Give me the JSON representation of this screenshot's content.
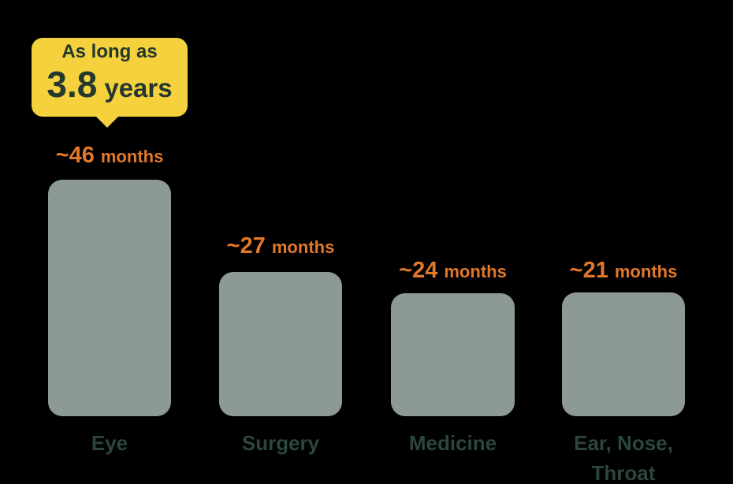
{
  "canvas": {
    "background_color": "#000000"
  },
  "callout": {
    "line1": "As long as",
    "value": "3.8",
    "unit": "years",
    "bg_color": "#F5D13D",
    "text_color": "#24382F"
  },
  "chart_data": {
    "type": "bar",
    "categories": [
      "Eye",
      "Surgery",
      "Medicine",
      "Ear, Nose, Throat"
    ],
    "values": [
      46,
      27,
      24,
      21
    ],
    "value_unit": "months",
    "value_labels": [
      "~46 months",
      "~27 months",
      "~24 months",
      "~21 months"
    ],
    "annotation": {
      "text": "As long as 3.8 years",
      "target_category": "Eye"
    },
    "bar_color": "#8D9A93",
    "value_label_color": "#E2782A",
    "category_label_color": "#2D463C",
    "grid": false,
    "legend": false,
    "points": [
      {
        "value": 46,
        "approx": "~46",
        "unit": "months",
        "category_line1": "Eye",
        "category_line2": ""
      },
      {
        "value": 27,
        "approx": "~27",
        "unit": "months",
        "category_line1": "Surgery",
        "category_line2": ""
      },
      {
        "value": 24,
        "approx": "~24",
        "unit": "months",
        "category_line1": "Medicine",
        "category_line2": ""
      },
      {
        "value": 21,
        "approx": "~21",
        "unit": "months",
        "category_line1": "Ear, Nose,",
        "category_line2": "Throat"
      }
    ]
  }
}
